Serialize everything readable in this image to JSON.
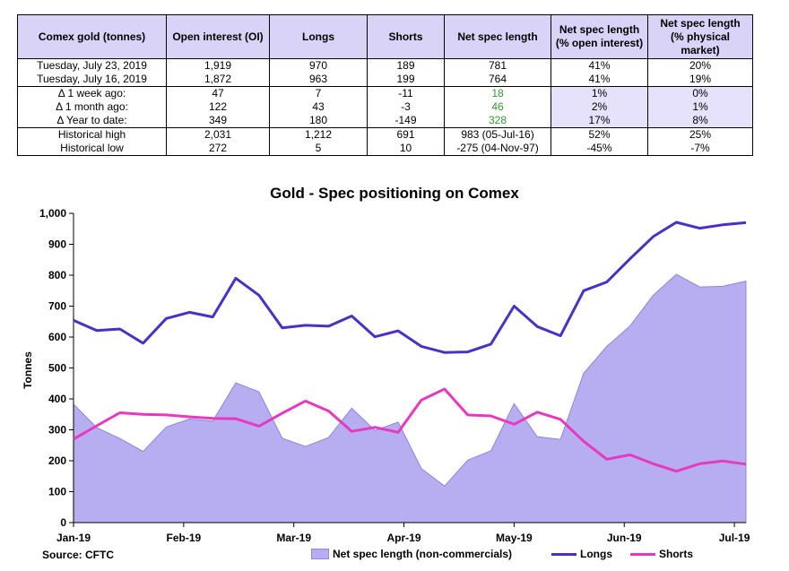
{
  "table": {
    "headers": [
      "Comex gold (tonnes)",
      "Open interest (OI)",
      "Longs",
      "Shorts",
      "Net spec length",
      "Net spec length\n(% open interest)",
      "Net spec length\n(% physical market)"
    ],
    "rows": [
      {
        "label": "Tuesday, July 23, 2019",
        "oi": "1,919",
        "longs": "970",
        "shorts": "189",
        "net": "781",
        "pct_oi": "41%",
        "pct_phys": "20%"
      },
      {
        "label": "Tuesday, July 16, 2019",
        "oi": "1,872",
        "longs": "963",
        "shorts": "199",
        "net": "764",
        "pct_oi": "41%",
        "pct_phys": "19%"
      },
      {
        "label": "Δ 1 week ago:",
        "oi": "47",
        "longs": "7",
        "shorts": "-11",
        "net": "18",
        "pct_oi": "1%",
        "pct_phys": "0%"
      },
      {
        "label": "Δ 1 month ago:",
        "oi": "122",
        "longs": "43",
        "shorts": "-3",
        "net": "46",
        "pct_oi": "2%",
        "pct_phys": "1%"
      },
      {
        "label": "Δ Year to date:",
        "oi": "349",
        "longs": "180",
        "shorts": "-149",
        "net": "328",
        "pct_oi": "17%",
        "pct_phys": "8%"
      },
      {
        "label": "Historical high",
        "oi": "2,031",
        "longs": "1,212",
        "shorts": "691",
        "net": "983  (05-Jul-16)",
        "pct_oi": "52%",
        "pct_phys": "25%"
      },
      {
        "label": "Historical low",
        "oi": "272",
        "longs": "5",
        "shorts": "10",
        "net": "-275  (04-Nov-97)",
        "pct_oi": "-45%",
        "pct_phys": "-7%"
      }
    ],
    "colors": {
      "header_bg": "#d9d3f7",
      "highlight_bg": "#e6e2fb",
      "positive_change": "#2e9b2e"
    }
  },
  "chart_data": {
    "type": "line",
    "title": "Gold - Spec positioning on Comex",
    "ylabel": "Tonnes",
    "xlabel": "",
    "ylim": [
      0,
      1000
    ],
    "yticks": [
      "0",
      "100",
      "200",
      "300",
      "400",
      "500",
      "600",
      "700",
      "800",
      "900",
      "1,000"
    ],
    "xtick_labels": [
      "Jan-19",
      "Feb-19",
      "Mar-19",
      "Apr-19",
      "May-19",
      "Jun-19",
      "Jul-19"
    ],
    "points_per_tick": 4.75,
    "series": [
      {
        "name": "Net spec length (non-commercials)",
        "kind": "area",
        "color": "#b6aef0",
        "values": [
          383,
          307,
          272,
          230,
          309,
          335,
          328,
          452,
          423,
          273,
          246,
          275,
          370,
          298,
          325,
          175,
          118,
          202,
          232,
          385,
          278,
          269,
          483,
          570,
          636,
          735,
          803,
          762,
          764,
          781
        ]
      },
      {
        "name": "Longs",
        "kind": "line",
        "color": "#4b2fc7",
        "values": [
          654,
          621,
          626,
          580,
          660,
          680,
          665,
          790,
          735,
          630,
          638,
          635,
          668,
          601,
          620,
          570,
          550,
          552,
          577,
          700,
          634,
          604,
          750,
          778,
          853,
          925,
          971,
          952,
          963,
          970
        ]
      },
      {
        "name": "Shorts",
        "kind": "line",
        "color": "#e838c0",
        "values": [
          270,
          313,
          355,
          350,
          348,
          342,
          337,
          336,
          312,
          354,
          393,
          361,
          295,
          308,
          292,
          396,
          432,
          348,
          345,
          318,
          357,
          334,
          263,
          205,
          219,
          190,
          166,
          190,
          199,
          189
        ]
      }
    ]
  },
  "source": "Source: CFTC"
}
